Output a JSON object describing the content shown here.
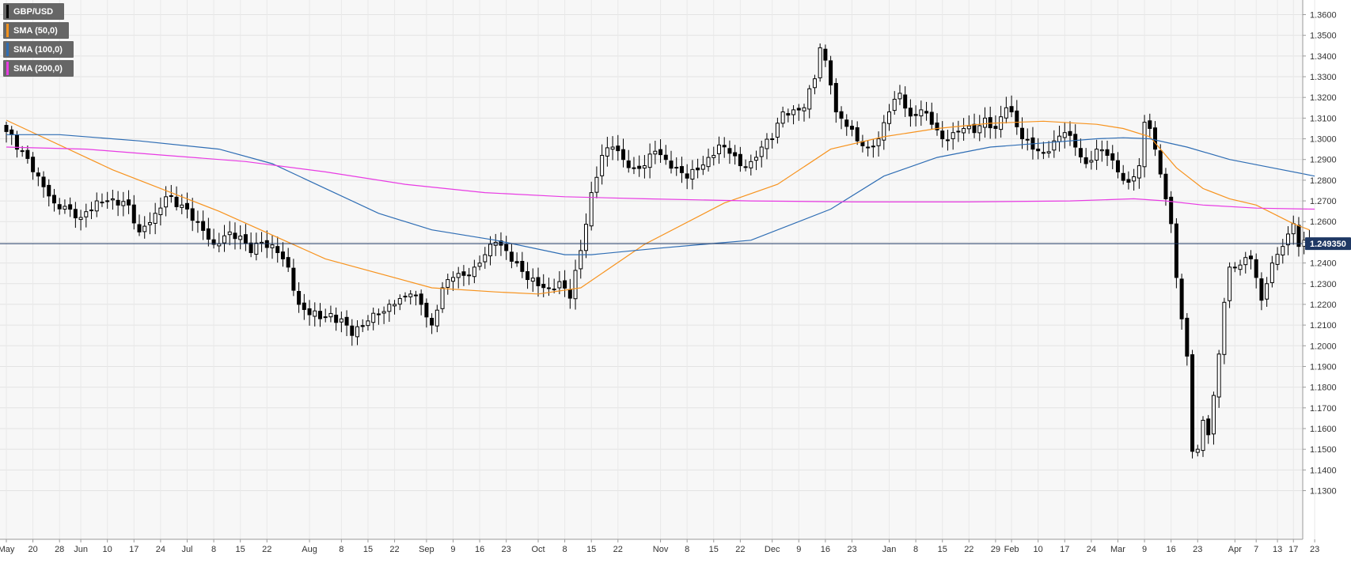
{
  "legend": [
    {
      "label": "GBP/USD",
      "color": "#000000"
    },
    {
      "label": "SMA (50,0)",
      "color": "#f7931e"
    },
    {
      "label": "SMA (100,0)",
      "color": "#2e6db4"
    },
    {
      "label": "SMA (200,0)",
      "color": "#e83be3"
    }
  ],
  "chart_data": {
    "type": "candlestick",
    "symbol": "GBP/USD",
    "last_price": "1.249350",
    "y_range": [
      1.13,
      1.36
    ],
    "y_ticks": [
      "1.1300",
      "1.1400",
      "1.1500",
      "1.1600",
      "1.1700",
      "1.1800",
      "1.1900",
      "1.2000",
      "1.2100",
      "1.2200",
      "1.2300",
      "1.2400",
      "1.2500",
      "1.2600",
      "1.2700",
      "1.2800",
      "1.2900",
      "1.3000",
      "1.3100",
      "1.3200",
      "1.3300",
      "1.3400",
      "1.3500",
      "1.3600"
    ],
    "x_ticks": [
      {
        "label": "May",
        "bar": 0
      },
      {
        "label": "20",
        "bar": 5
      },
      {
        "label": "28",
        "bar": 10
      },
      {
        "label": "Jun",
        "bar": 14
      },
      {
        "label": "10",
        "bar": 19
      },
      {
        "label": "17",
        "bar": 24
      },
      {
        "label": "24",
        "bar": 29
      },
      {
        "label": "Jul",
        "bar": 34
      },
      {
        "label": "8",
        "bar": 39
      },
      {
        "label": "15",
        "bar": 44
      },
      {
        "label": "22",
        "bar": 49
      },
      {
        "label": "Aug",
        "bar": 57
      },
      {
        "label": "8",
        "bar": 63
      },
      {
        "label": "15",
        "bar": 68
      },
      {
        "label": "22",
        "bar": 73
      },
      {
        "label": "Sep",
        "bar": 79
      },
      {
        "label": "9",
        "bar": 84
      },
      {
        "label": "16",
        "bar": 89
      },
      {
        "label": "23",
        "bar": 94
      },
      {
        "label": "Oct",
        "bar": 100
      },
      {
        "label": "8",
        "bar": 105
      },
      {
        "label": "15",
        "bar": 110
      },
      {
        "label": "22",
        "bar": 115
      },
      {
        "label": "Nov",
        "bar": 123
      },
      {
        "label": "8",
        "bar": 128
      },
      {
        "label": "15",
        "bar": 133
      },
      {
        "label": "22",
        "bar": 138
      },
      {
        "label": "Dec",
        "bar": 144
      },
      {
        "label": "9",
        "bar": 149
      },
      {
        "label": "16",
        "bar": 154
      },
      {
        "label": "23",
        "bar": 159
      },
      {
        "label": "Jan",
        "bar": 166
      },
      {
        "label": "8",
        "bar": 171
      },
      {
        "label": "15",
        "bar": 176
      },
      {
        "label": "22",
        "bar": 181
      },
      {
        "label": "29",
        "bar": 186
      },
      {
        "label": "Feb",
        "bar": 189
      },
      {
        "label": "10",
        "bar": 194
      },
      {
        "label": "17",
        "bar": 199
      },
      {
        "label": "24",
        "bar": 204
      },
      {
        "label": "Mar",
        "bar": 209
      },
      {
        "label": "9",
        "bar": 214
      },
      {
        "label": "16",
        "bar": 219
      },
      {
        "label": "23",
        "bar": 224
      },
      {
        "label": "Apr",
        "bar": 231
      },
      {
        "label": "7",
        "bar": 235
      },
      {
        "label": "13",
        "bar": 239
      },
      {
        "label": "17",
        "bar": 242
      },
      {
        "label": "23",
        "bar": 246
      }
    ],
    "close_path": [
      [
        0,
        1.3035
      ],
      [
        3,
        1.294
      ],
      [
        6,
        1.282
      ],
      [
        9,
        1.269
      ],
      [
        12,
        1.266
      ],
      [
        14,
        1.262
      ],
      [
        17,
        1.27
      ],
      [
        20,
        1.271
      ],
      [
        23,
        1.268
      ],
      [
        25,
        1.255
      ],
      [
        28,
        1.264
      ],
      [
        30,
        1.272
      ],
      [
        33,
        1.268
      ],
      [
        36,
        1.26
      ],
      [
        39,
        1.249
      ],
      [
        42,
        1.255
      ],
      [
        44,
        1.253
      ],
      [
        46,
        1.245
      ],
      [
        48,
        1.25
      ],
      [
        51,
        1.245
      ],
      [
        53,
        1.238
      ],
      [
        55,
        1.22
      ],
      [
        57,
        1.215
      ],
      [
        60,
        1.214
      ],
      [
        63,
        1.213
      ],
      [
        65,
        1.205
      ],
      [
        68,
        1.212
      ],
      [
        70,
        1.215
      ],
      [
        73,
        1.22
      ],
      [
        76,
        1.225
      ],
      [
        78,
        1.22
      ],
      [
        80,
        1.21
      ],
      [
        82,
        1.228
      ],
      [
        84,
        1.233
      ],
      [
        86,
        1.234
      ],
      [
        88,
        1.238
      ],
      [
        90,
        1.244
      ],
      [
        92,
        1.25
      ],
      [
        94,
        1.246
      ],
      [
        96,
        1.24
      ],
      [
        98,
        1.232
      ],
      [
        100,
        1.229
      ],
      [
        102,
        1.228
      ],
      [
        104,
        1.231
      ],
      [
        106,
        1.223
      ],
      [
        108,
        1.246
      ],
      [
        110,
        1.274
      ],
      [
        112,
        1.292
      ],
      [
        114,
        1.296
      ],
      [
        116,
        1.29
      ],
      [
        118,
        1.286
      ],
      [
        120,
        1.287
      ],
      [
        122,
        1.294
      ],
      [
        124,
        1.29
      ],
      [
        126,
        1.286
      ],
      [
        128,
        1.281
      ],
      [
        130,
        1.285
      ],
      [
        132,
        1.291
      ],
      [
        134,
        1.297
      ],
      [
        136,
        1.293
      ],
      [
        138,
        1.287
      ],
      [
        140,
        1.289
      ],
      [
        142,
        1.296
      ],
      [
        144,
        1.3
      ],
      [
        146,
        1.313
      ],
      [
        148,
        1.314
      ],
      [
        150,
        1.315
      ],
      [
        152,
        1.329
      ],
      [
        153,
        1.344
      ],
      [
        154,
        1.338
      ],
      [
        155,
        1.326
      ],
      [
        156,
        1.313
      ],
      [
        158,
        1.306
      ],
      [
        160,
        1.299
      ],
      [
        162,
        1.296
      ],
      [
        164,
        1.3
      ],
      [
        166,
        1.313
      ],
      [
        168,
        1.322
      ],
      [
        170,
        1.311
      ],
      [
        172,
        1.314
      ],
      [
        174,
        1.307
      ],
      [
        176,
        1.3
      ],
      [
        178,
        1.303
      ],
      [
        180,
        1.305
      ],
      [
        182,
        1.303
      ],
      [
        184,
        1.31
      ],
      [
        186,
        1.305
      ],
      [
        188,
        1.315
      ],
      [
        189,
        1.313
      ],
      [
        191,
        1.3
      ],
      [
        193,
        1.295
      ],
      [
        195,
        1.293
      ],
      [
        197,
        1.299
      ],
      [
        199,
        1.303
      ],
      [
        201,
        1.296
      ],
      [
        203,
        1.288
      ],
      [
        205,
        1.295
      ],
      [
        207,
        1.292
      ],
      [
        209,
        1.284
      ],
      [
        211,
        1.279
      ],
      [
        213,
        1.287
      ],
      [
        214,
        1.308
      ],
      [
        215,
        1.305
      ],
      [
        216,
        1.295
      ],
      [
        217,
        1.283
      ],
      [
        218,
        1.271
      ],
      [
        219,
        1.259
      ],
      [
        220,
        1.233
      ],
      [
        221,
        1.213
      ],
      [
        222,
        1.195
      ],
      [
        223,
        1.149
      ],
      [
        224,
        1.15
      ],
      [
        225,
        1.164
      ],
      [
        226,
        1.157
      ],
      [
        227,
        1.176
      ],
      [
        228,
        1.196
      ],
      [
        229,
        1.221
      ],
      [
        230,
        1.238
      ],
      [
        232,
        1.239
      ],
      [
        234,
        1.242
      ],
      [
        235,
        1.233
      ],
      [
        236,
        1.222
      ],
      [
        237,
        1.23
      ],
      [
        238,
        1.24
      ],
      [
        240,
        1.248
      ],
      [
        241,
        1.254
      ],
      [
        242,
        1.259
      ],
      [
        243,
        1.248
      ],
      [
        244,
        1.251
      ],
      [
        245,
        1.249
      ]
    ],
    "sma_series": [
      {
        "period": 50,
        "points": [
          [
            0,
            1.309
          ],
          [
            20,
            1.285
          ],
          [
            40,
            1.265
          ],
          [
            60,
            1.242
          ],
          [
            80,
            1.228
          ],
          [
            92,
            1.226
          ],
          [
            100,
            1.225
          ],
          [
            108,
            1.228
          ],
          [
            120,
            1.249
          ],
          [
            135,
            1.269
          ],
          [
            145,
            1.278
          ],
          [
            155,
            1.295
          ],
          [
            165,
            1.301
          ],
          [
            175,
            1.305
          ],
          [
            185,
            1.3075
          ],
          [
            195,
            1.3085
          ],
          [
            205,
            1.307
          ],
          [
            210,
            1.305
          ],
          [
            215,
            1.301
          ],
          [
            220,
            1.286
          ],
          [
            225,
            1.276
          ],
          [
            230,
            1.271
          ],
          [
            235,
            1.268
          ],
          [
            242,
            1.259
          ],
          [
            245,
            1.256
          ]
        ]
      },
      {
        "period": 100,
        "points": [
          [
            0,
            1.302
          ],
          [
            10,
            1.302
          ],
          [
            25,
            1.299
          ],
          [
            40,
            1.295
          ],
          [
            50,
            1.288
          ],
          [
            60,
            1.276
          ],
          [
            70,
            1.264
          ],
          [
            80,
            1.256
          ],
          [
            92,
            1.251
          ],
          [
            105,
            1.244
          ],
          [
            110,
            1.244
          ],
          [
            122,
            1.247
          ],
          [
            140,
            1.251
          ],
          [
            155,
            1.266
          ],
          [
            165,
            1.282
          ],
          [
            175,
            1.291
          ],
          [
            185,
            1.296
          ],
          [
            195,
            1.298
          ],
          [
            205,
            1.3
          ],
          [
            210,
            1.3005
          ],
          [
            215,
            1.3
          ],
          [
            222,
            1.296
          ],
          [
            230,
            1.29
          ],
          [
            238,
            1.286
          ],
          [
            246,
            1.282
          ]
        ]
      },
      {
        "period": 200,
        "points": [
          [
            0,
            1.296
          ],
          [
            15,
            1.295
          ],
          [
            30,
            1.292
          ],
          [
            45,
            1.289
          ],
          [
            60,
            1.284
          ],
          [
            75,
            1.278
          ],
          [
            90,
            1.274
          ],
          [
            105,
            1.272
          ],
          [
            120,
            1.271
          ],
          [
            140,
            1.27
          ],
          [
            160,
            1.2695
          ],
          [
            180,
            1.2695
          ],
          [
            200,
            1.27
          ],
          [
            212,
            1.271
          ],
          [
            218,
            1.27
          ],
          [
            225,
            1.268
          ],
          [
            235,
            1.2665
          ],
          [
            246,
            1.266
          ]
        ]
      }
    ]
  }
}
